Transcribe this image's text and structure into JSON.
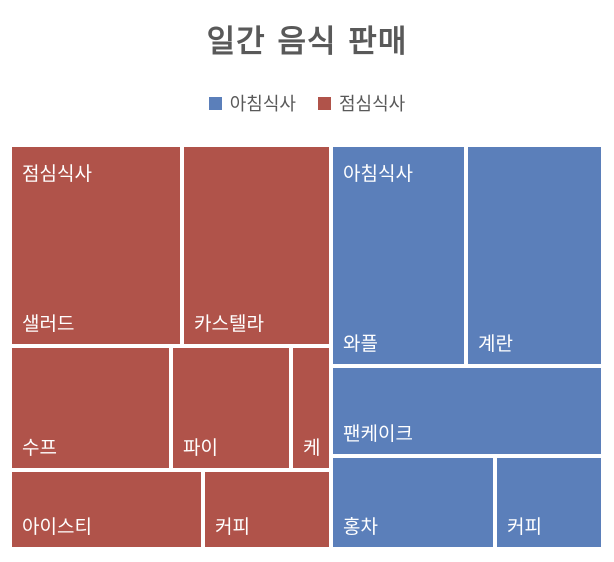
{
  "chart_data": {
    "type": "treemap",
    "title": "일간 음식 판매",
    "legend": {
      "position": "top",
      "entries": [
        {
          "name": "아침식사",
          "color": "#5b7fba"
        },
        {
          "name": "점심식사",
          "color": "#b0534a"
        }
      ]
    },
    "groups": [
      {
        "name": "점심식사",
        "color": "#b0534a",
        "items": [
          {
            "label": "샐러드",
            "value": 33
          },
          {
            "label": "카스텔라",
            "value": 30
          },
          {
            "label": "수프",
            "value": 20
          },
          {
            "label": "파이",
            "value": 15
          },
          {
            "label": "케",
            "value": 5
          },
          {
            "label": "아이스티",
            "value": 16
          },
          {
            "label": "커피",
            "value": 10
          }
        ]
      },
      {
        "name": "아침식사",
        "color": "#5b7fba",
        "items": [
          {
            "label": "와플",
            "value": 29
          },
          {
            "label": "계란",
            "value": 27
          },
          {
            "label": "팬케이크",
            "value": 22
          },
          {
            "label": "홍차",
            "value": 17
          },
          {
            "label": "커피",
            "value": 11
          }
        ]
      }
    ]
  }
}
